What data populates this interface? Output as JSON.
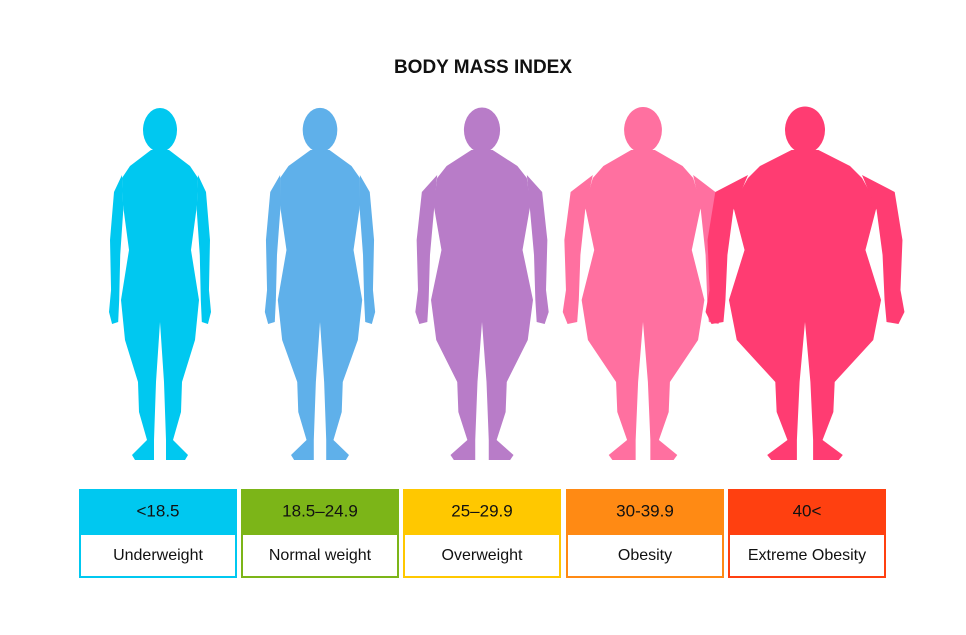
{
  "header": {
    "title": "BODY MASS INDEX"
  },
  "categories": [
    {
      "range": "<18.5",
      "label": "Underweight",
      "box_color": "#00c8f0",
      "figure_color": "#00c8f0"
    },
    {
      "range": "18.5–24.9",
      "label": "Normal weight",
      "box_color": "#7cb518",
      "figure_color": "#5fb0ea"
    },
    {
      "range": "25–29.9",
      "label": "Overweight",
      "box_color": "#ffc800",
      "figure_color": "#b87cc8"
    },
    {
      "range": "30-39.9",
      "label": "Obesity",
      "box_color": "#ff8a14",
      "figure_color": "#ff70a0"
    },
    {
      "range": "40<",
      "label": "Extreme Obesity",
      "box_color": "#ff4010",
      "figure_color": "#ff3c72"
    }
  ]
}
